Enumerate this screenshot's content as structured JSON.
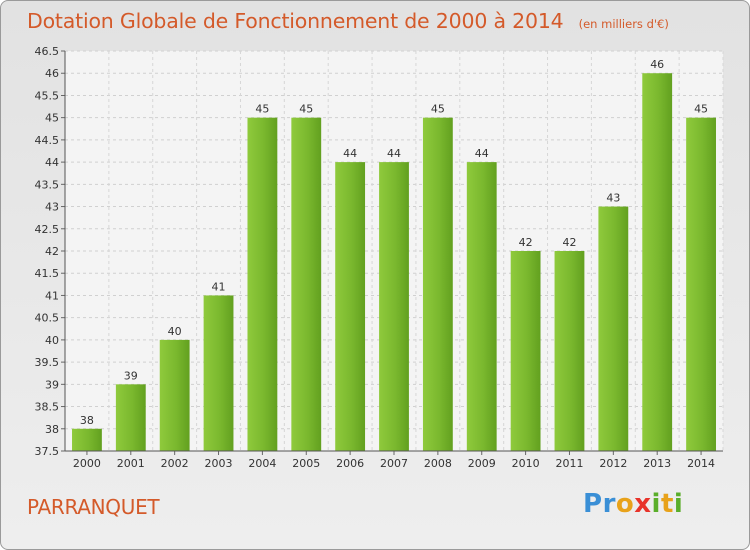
{
  "chart_data": {
    "type": "bar",
    "title": "Dotation Globale de Fonctionnement de 2000 à 2014",
    "subtitle": "(en milliers d'€)",
    "categories": [
      "2000",
      "2001",
      "2002",
      "2003",
      "2004",
      "2005",
      "2006",
      "2007",
      "2008",
      "2009",
      "2010",
      "2011",
      "2012",
      "2013",
      "2014"
    ],
    "values": [
      38,
      39,
      40,
      41,
      45,
      45,
      44,
      44,
      45,
      44,
      42,
      42,
      43,
      46,
      45
    ],
    "ylim": [
      37.5,
      46.5
    ],
    "yticks": [
      "37.5",
      "38",
      "38.5",
      "39",
      "39.5",
      "40",
      "40.5",
      "41",
      "41.5",
      "42",
      "42.5",
      "43",
      "43.5",
      "44",
      "44.5",
      "45",
      "45.5",
      "46",
      "46.5"
    ],
    "grid": true,
    "bar_color": "#7ab82e"
  },
  "commune": "PARRANQUET",
  "logo": {
    "letters": [
      "P",
      "r",
      "o",
      "x",
      "i",
      "t",
      "i"
    ],
    "colors": [
      "#3a8fd6",
      "#3a8fd6",
      "#e8a21a",
      "#e8332a",
      "#5aae2a",
      "#e8a21a",
      "#5aae2a"
    ]
  }
}
